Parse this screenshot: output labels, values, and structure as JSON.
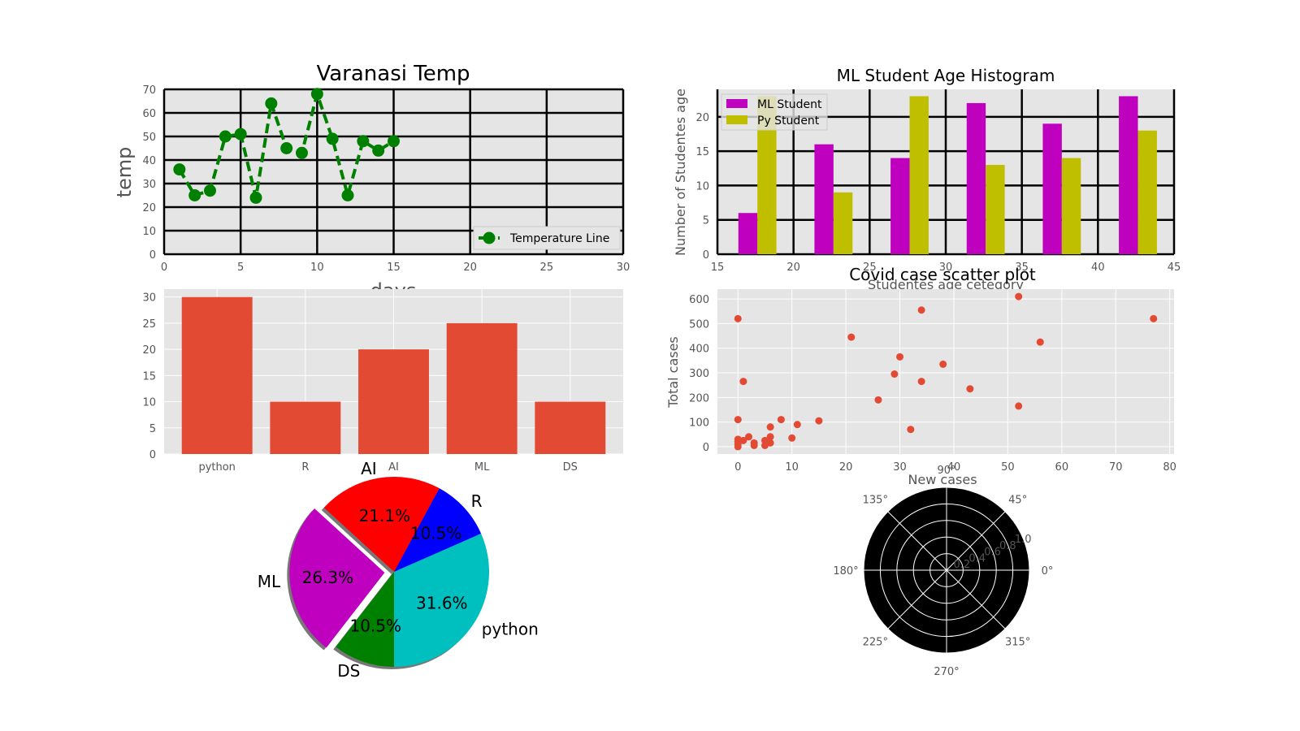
{
  "chart_data": [
    {
      "id": "temp",
      "type": "line",
      "title": "Varanasi Temp",
      "xlabel": "days",
      "ylabel": "temp",
      "xlim": [
        0,
        30
      ],
      "ylim": [
        0,
        70
      ],
      "xticks": [
        0,
        5,
        10,
        15,
        20,
        25,
        30
      ],
      "yticks": [
        0,
        10,
        20,
        30,
        40,
        50,
        60,
        70
      ],
      "grid": true,
      "series": [
        {
          "name": "Temperature  Line",
          "x": [
            1,
            2,
            3,
            4,
            5,
            6,
            7,
            8,
            9,
            10,
            11,
            12,
            13,
            14,
            15
          ],
          "y": [
            36,
            25,
            27,
            50,
            51,
            24,
            64,
            45,
            43,
            68,
            49,
            25,
            48,
            44,
            48
          ],
          "color": "#008000"
        }
      ],
      "legend": "lower right"
    },
    {
      "id": "hist",
      "type": "bar",
      "title": "ML Student Age Histogram",
      "xlabel": "Studentes age cetegory",
      "ylabel": "Number of Studentes age",
      "xlim": [
        15,
        45
      ],
      "ylim": [
        0,
        24
      ],
      "xticks": [
        15,
        20,
        25,
        30,
        35,
        40,
        45
      ],
      "yticks": [
        0,
        5,
        10,
        15,
        20
      ],
      "grid": true,
      "legend": "upper left",
      "series": [
        {
          "name": "ML Student",
          "color": "#bf00bf",
          "x": [
            17,
            22,
            27,
            32,
            37,
            42
          ],
          "values": [
            6,
            16,
            14,
            22,
            19,
            23
          ]
        },
        {
          "name": "Py Student",
          "color": "#bfbf00",
          "x": [
            18.25,
            23.25,
            28.25,
            33.25,
            38.25,
            43.25
          ],
          "values": [
            23,
            9,
            23,
            13,
            14,
            18
          ]
        }
      ]
    },
    {
      "id": "bars",
      "type": "bar",
      "title": "",
      "categories": [
        "python",
        "R",
        "AI",
        "ML",
        "DS"
      ],
      "values": [
        30,
        10,
        20,
        25,
        10
      ],
      "ylim": [
        0,
        31.5
      ],
      "yticks": [
        0,
        5,
        10,
        15,
        20,
        25,
        30
      ],
      "color": "#e24a33",
      "grid": true
    },
    {
      "id": "scatter",
      "type": "scatter",
      "title": "Covid case scatter plot",
      "xlabel": "New cases",
      "ylabel": "Total cases",
      "xlim": [
        -3.8,
        80.8
      ],
      "ylim": [
        -30,
        640
      ],
      "xticks": [
        0,
        10,
        20,
        30,
        40,
        50,
        60,
        70,
        80
      ],
      "yticks": [
        0,
        100,
        200,
        300,
        400,
        500,
        600
      ],
      "color": "#e24a33",
      "grid": true,
      "points": [
        [
          0,
          520
        ],
        [
          1,
          265
        ],
        [
          0,
          110
        ],
        [
          0,
          30
        ],
        [
          0,
          20
        ],
        [
          0,
          10
        ],
        [
          0,
          0
        ],
        [
          1,
          25
        ],
        [
          2,
          40
        ],
        [
          3,
          15
        ],
        [
          3,
          5
        ],
        [
          5,
          25
        ],
        [
          5,
          5
        ],
        [
          6,
          15
        ],
        [
          6,
          40
        ],
        [
          6,
          80
        ],
        [
          8,
          110
        ],
        [
          10,
          35
        ],
        [
          11,
          90
        ],
        [
          15,
          105
        ],
        [
          21,
          445
        ],
        [
          26,
          190
        ],
        [
          29,
          295
        ],
        [
          30,
          365
        ],
        [
          32,
          70
        ],
        [
          34,
          555
        ],
        [
          34,
          265
        ],
        [
          38,
          335
        ],
        [
          43,
          235
        ],
        [
          52,
          610
        ],
        [
          52,
          165
        ],
        [
          56,
          425
        ],
        [
          77,
          520
        ]
      ]
    },
    {
      "id": "pie",
      "type": "pie",
      "title": "",
      "labels": [
        "python",
        "R",
        "AI",
        "ML",
        "DS"
      ],
      "values": [
        31.6,
        10.5,
        21.1,
        26.3,
        10.5
      ],
      "percent_labels": [
        "31.6%",
        "10.5%",
        "21.1%",
        "26.3%",
        "10.5%"
      ],
      "colors": [
        "#00bfbf",
        "#0000ff",
        "#ff0000",
        "#bf00bf",
        "#008000"
      ],
      "explode": [
        0,
        0,
        0,
        0.1,
        0
      ],
      "start_angle": -90,
      "shadow": true
    },
    {
      "id": "polar",
      "type": "polar",
      "title": "",
      "angle_labels": [
        "0°",
        "45°",
        "90°",
        "135°",
        "180°",
        "225°",
        "270°",
        "315°"
      ],
      "radial_labels": [
        "0.2",
        "0.4",
        "0.6",
        "0.8",
        "1.0"
      ],
      "rlim": [
        0,
        1
      ],
      "background": "#000000"
    }
  ]
}
